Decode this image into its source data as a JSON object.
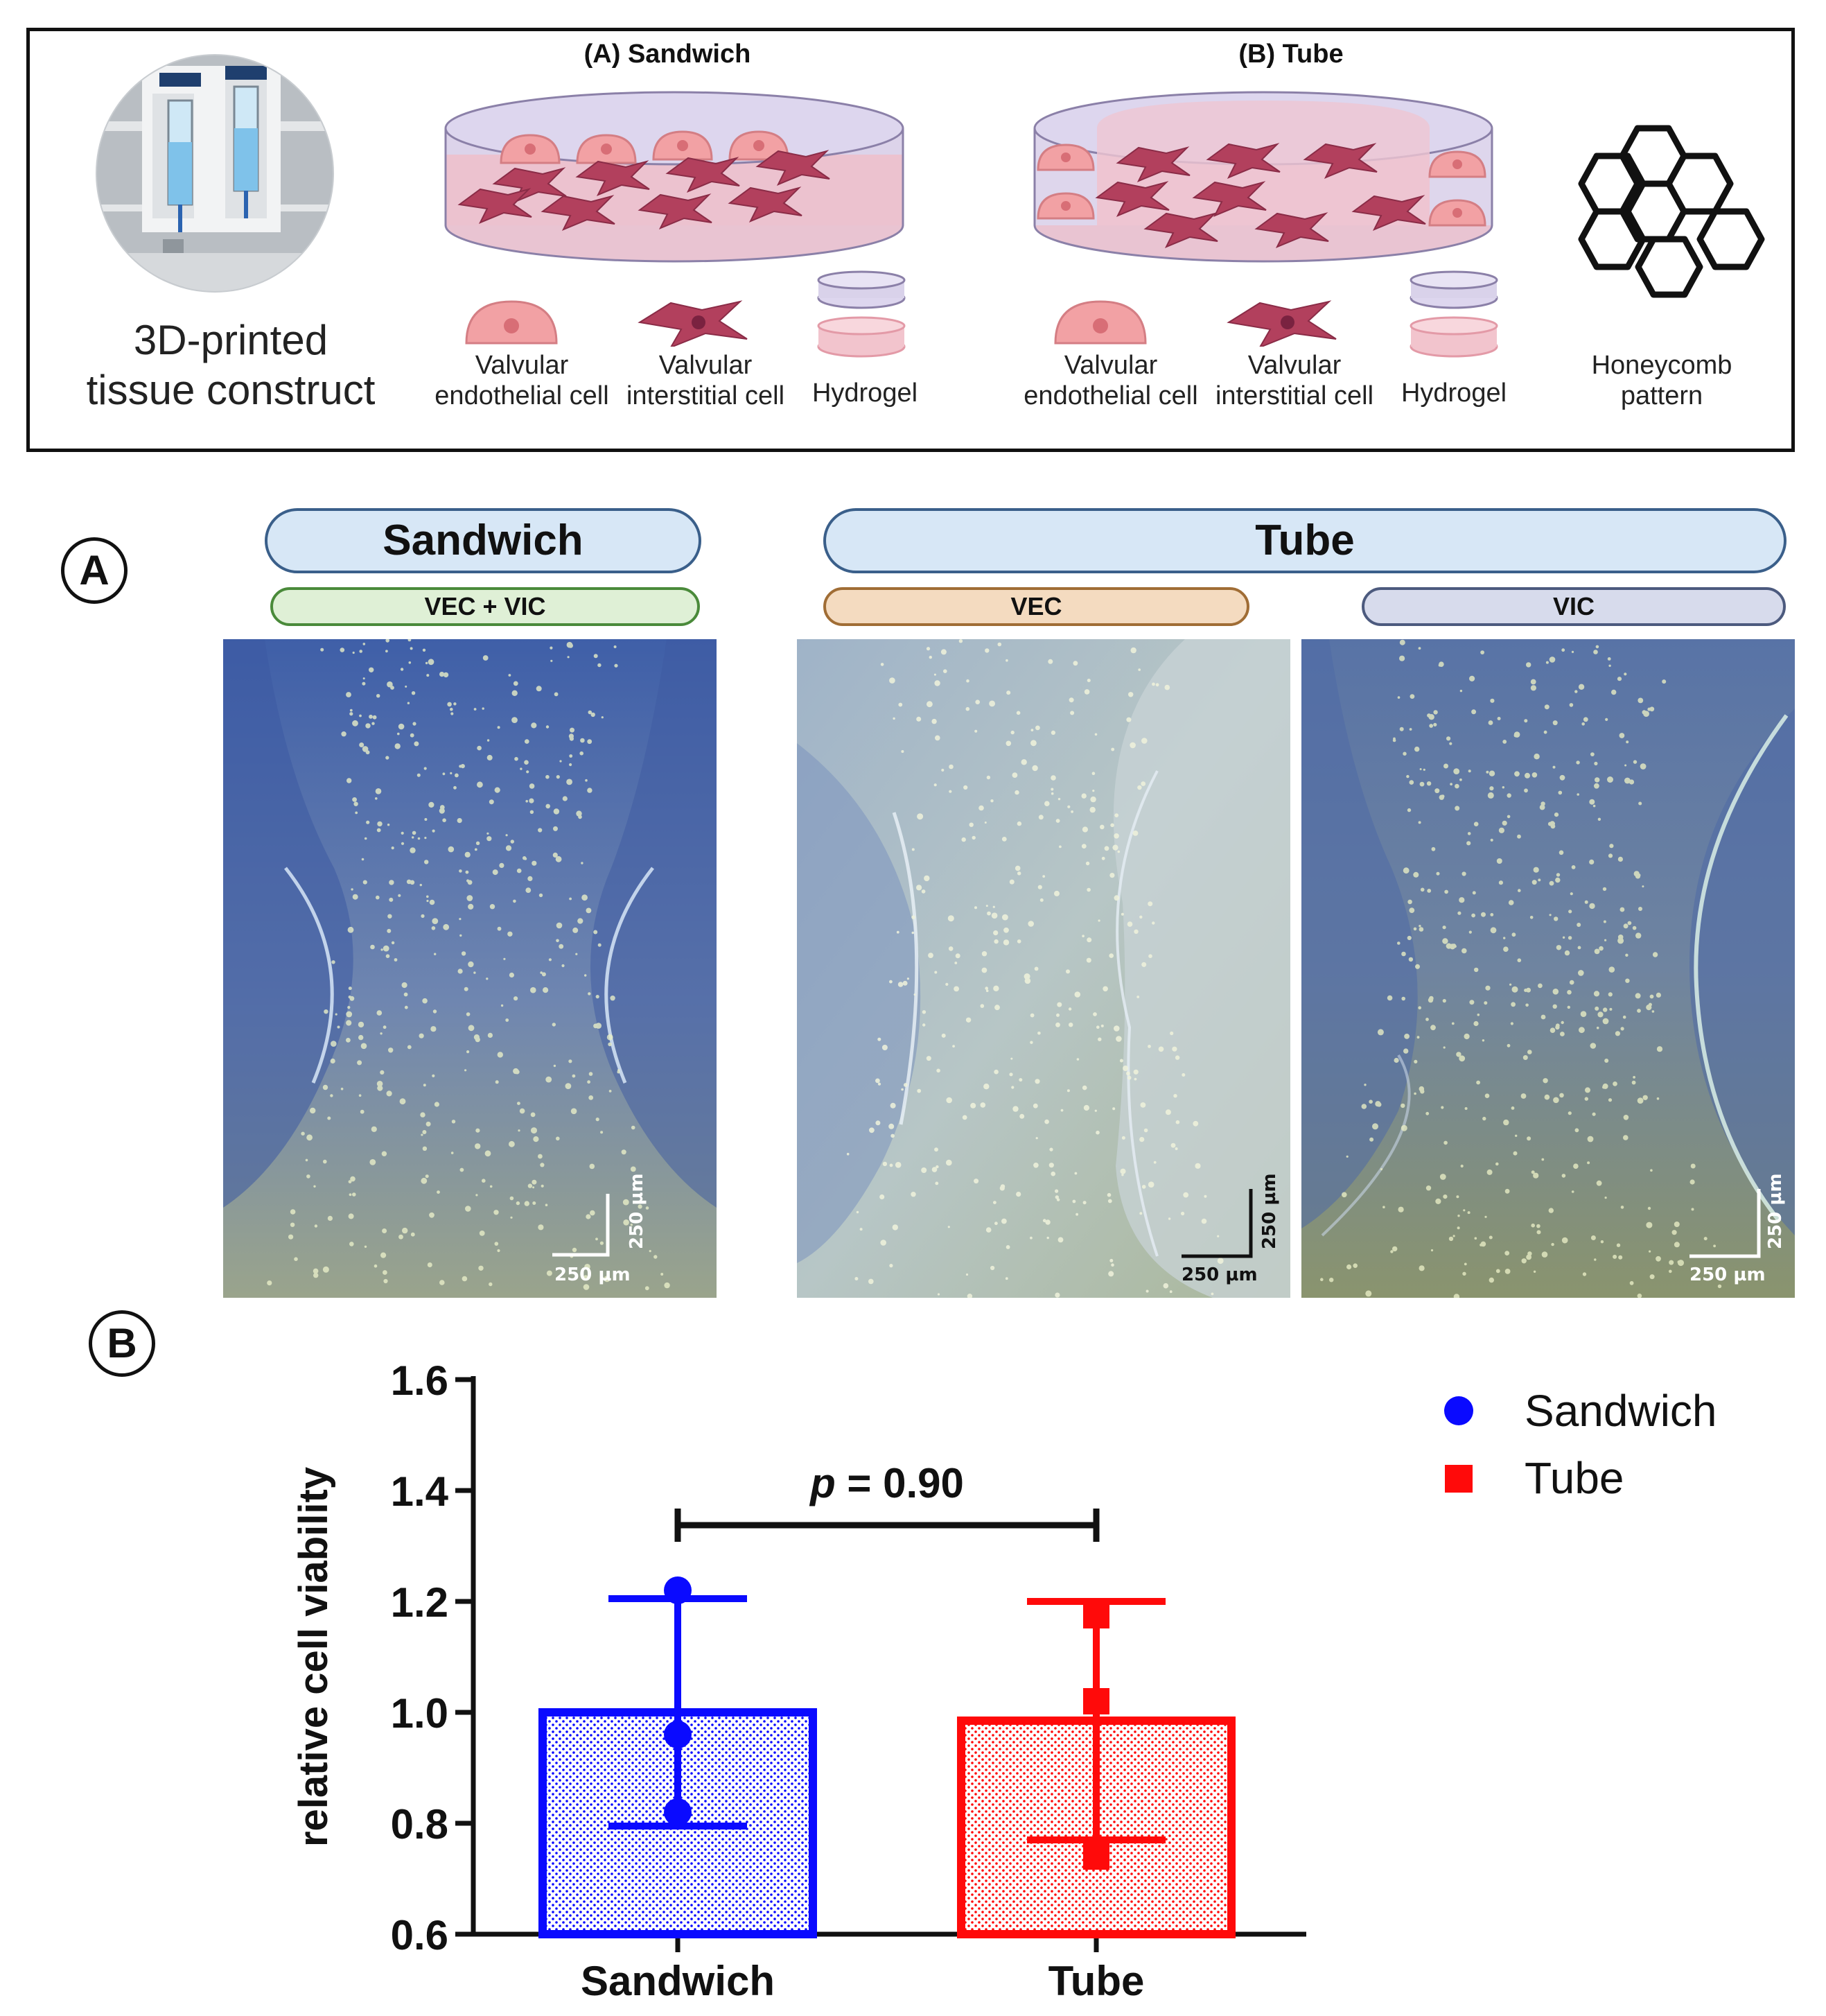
{
  "schematic": {
    "printer_caption_line1": "3D-printed",
    "printer_caption_line2": "tissue construct",
    "sandwich_title": "(A) Sandwich",
    "tube_title": "(B) Tube",
    "legend_vec_line1": "Valvular",
    "legend_vec_line2": "endothelial cell",
    "legend_vic_line1": "Valvular",
    "legend_vic_line2": "interstitial cell",
    "legend_hydrogel": "Hydrogel",
    "honeycomb_line1": "Honeycomb",
    "honeycomb_line2": "pattern"
  },
  "panel_a": {
    "letter": "A",
    "sandwich_header": "Sandwich",
    "tube_header": "Tube",
    "sandwich_sub": "VEC + VIC",
    "tube_sub_vec": "VEC",
    "tube_sub_vic": "VIC",
    "scale_bar_label": "250 µm"
  },
  "panel_b": {
    "letter": "B"
  },
  "chart_data": {
    "type": "bar",
    "categories": [
      "Sandwich",
      "Tube"
    ],
    "series": [
      {
        "name": "Sandwich",
        "category": "Sandwich",
        "mean": 1.0,
        "error_low": 0.795,
        "error_high": 1.205,
        "points": [
          1.22,
          0.96,
          0.82
        ],
        "color": "#0a0aff",
        "marker": "circle"
      },
      {
        "name": "Tube",
        "category": "Tube",
        "mean": 0.985,
        "error_low": 0.77,
        "error_high": 1.2,
        "points": [
          1.175,
          1.02,
          0.74
        ],
        "color": "#ff0a0a",
        "marker": "square"
      }
    ],
    "ylabel": "relative cell viability",
    "xlabel": "",
    "ylim": [
      0.6,
      1.6
    ],
    "yticks": [
      0.6,
      0.8,
      1.0,
      1.2,
      1.4,
      1.6
    ],
    "ytick_labels": [
      "0.6",
      "0.8",
      "1.0",
      "1.2",
      "1.4",
      "1.6"
    ],
    "annotation": {
      "p_symbol": "p",
      "text": " = 0.90"
    },
    "legend_position": "top-right",
    "grid": false
  }
}
